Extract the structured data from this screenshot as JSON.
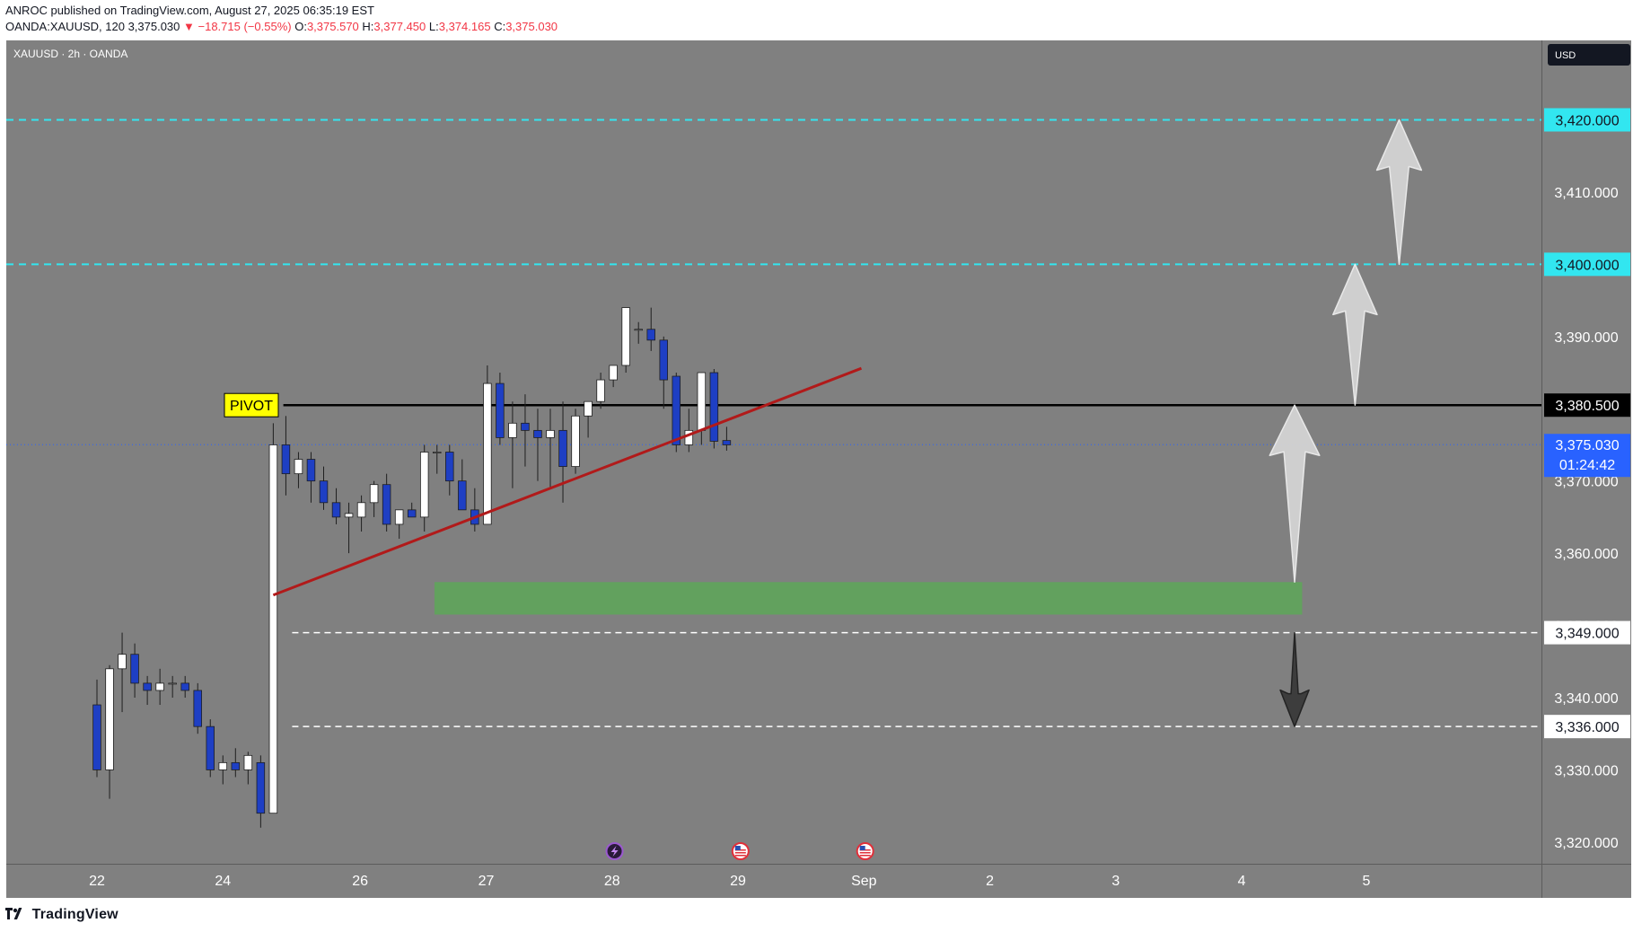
{
  "header": {
    "publisher_line": "ANROC published on TradingView.com, August 27, 2025 06:35:19 EST",
    "symbol_line": "OANDA:XAUUSD, 120",
    "last": "3,375.030",
    "change": "▼ −18.715 (−0.55%)",
    "o_label": "O:",
    "o_value": "3,375.570",
    "h_label": "H:",
    "h_value": "3,377.450",
    "l_label": "L:",
    "l_value": "3,374.165",
    "c_label": "C:",
    "c_value": "3,375.030"
  },
  "footer": {
    "brand": "TradingView",
    "logo_mark": "17"
  },
  "colors": {
    "background": "#808080",
    "up_candle": "#ffffff",
    "down_candle": "#1e3fc4",
    "wick": "#1f1f1f",
    "trendline": "#b11a1a",
    "zone": "#5ea45a",
    "cyan_level": "#32e6f0",
    "current_price": "#2962ff",
    "pivot_label": "#ffff00"
  },
  "chart_data": {
    "type": "candlestick",
    "pane_title": "XAUUSD · 2h · OANDA",
    "currency": "USD",
    "ylim": [
      3317,
      3431
    ],
    "xlim": [
      -7.2,
      114.7
    ],
    "y_ticks": [
      "3,320.000",
      "3,330.000",
      "3,340.000",
      "3,350.000",
      "3,360.000",
      "3,370.000",
      "3,390.000",
      "3,410.000"
    ],
    "y_tick_values": [
      3320,
      3330,
      3340,
      3350,
      3360,
      3370,
      3390,
      3410
    ],
    "x_ticks": [
      {
        "label": "22",
        "i": 0
      },
      {
        "label": "24",
        "i": 10
      },
      {
        "label": "26",
        "i": 20.9
      },
      {
        "label": "27",
        "i": 30.9
      },
      {
        "label": "28",
        "i": 40.9
      },
      {
        "label": "29",
        "i": 50.9
      },
      {
        "label": "Sep",
        "i": 60.9
      },
      {
        "label": "2",
        "i": 70.9
      },
      {
        "label": "3",
        "i": 80.9
      },
      {
        "label": "4",
        "i": 90.9
      },
      {
        "label": "5",
        "i": 100.8
      }
    ],
    "candles": [
      [
        3339.0,
        3342.5,
        3329.0,
        3330.0
      ],
      [
        3330.0,
        3344.5,
        3326.0,
        3344.0
      ],
      [
        3344.0,
        3349.0,
        3338.0,
        3346.0
      ],
      [
        3346.0,
        3347.5,
        3340.0,
        3342.0
      ],
      [
        3342.0,
        3343.0,
        3339.0,
        3341.0
      ],
      [
        3341.0,
        3344.0,
        3339.0,
        3342.0
      ],
      [
        3342.0,
        3343.0,
        3340.0,
        3342.0
      ],
      [
        3342.0,
        3343.0,
        3340.0,
        3341.0
      ],
      [
        3341.0,
        3342.0,
        3335.0,
        3336.0
      ],
      [
        3336.0,
        3337.0,
        3329.0,
        3330.0
      ],
      [
        3330.0,
        3332.0,
        3328.0,
        3331.0
      ],
      [
        3331.0,
        3333.0,
        3329.0,
        3330.0
      ],
      [
        3330.0,
        3332.5,
        3328.0,
        3332.0
      ],
      [
        3331.0,
        3332.0,
        3322.0,
        3324.0
      ],
      [
        3324.0,
        3378.0,
        3324.0,
        3375.0
      ],
      [
        3375.0,
        3379.0,
        3368.0,
        3371.0
      ],
      [
        3371.0,
        3374.0,
        3369.0,
        3373.0
      ],
      [
        3373.0,
        3374.0,
        3367.0,
        3370.0
      ],
      [
        3370.0,
        3372.0,
        3366.0,
        3367.0
      ],
      [
        3367.0,
        3369.0,
        3364.0,
        3365.0
      ],
      [
        3365.0,
        3367.0,
        3360.0,
        3365.5
      ],
      [
        3365.0,
        3368.0,
        3363.0,
        3367.0
      ],
      [
        3367.0,
        3370.0,
        3365.0,
        3369.5
      ],
      [
        3369.5,
        3371.0,
        3363.0,
        3364.0
      ],
      [
        3364.0,
        3366.0,
        3362.0,
        3366.0
      ],
      [
        3366.0,
        3367.0,
        3365.0,
        3365.0
      ],
      [
        3365.0,
        3375.0,
        3363.0,
        3374.0
      ],
      [
        3374.0,
        3375.0,
        3371.0,
        3374.0
      ],
      [
        3374.0,
        3375.0,
        3368.0,
        3370.0
      ],
      [
        3370.0,
        3373.0,
        3367.0,
        3366.0
      ],
      [
        3366.0,
        3369.0,
        3363.0,
        3364.0
      ],
      [
        3364.0,
        3386.0,
        3364.0,
        3383.5
      ],
      [
        3383.5,
        3385.0,
        3375.0,
        3376.0
      ],
      [
        3376.0,
        3381.0,
        3369.0,
        3378.0
      ],
      [
        3378.0,
        3382.0,
        3372.0,
        3377.0
      ],
      [
        3377.0,
        3380.0,
        3370.0,
        3376.0
      ],
      [
        3376.0,
        3380.0,
        3369.0,
        3377.0
      ],
      [
        3377.0,
        3381.0,
        3367.0,
        3372.0
      ],
      [
        3372.0,
        3380.0,
        3371.0,
        3379.0
      ],
      [
        3379.0,
        3381.0,
        3376.0,
        3381.0
      ],
      [
        3381.0,
        3385.0,
        3380.0,
        3384.0
      ],
      [
        3384.0,
        3386.0,
        3383.0,
        3386.0
      ],
      [
        3386.0,
        3394.0,
        3385.0,
        3394.0
      ],
      [
        3391.0,
        3392.0,
        3389.0,
        3391.0
      ],
      [
        3391.0,
        3394.0,
        3388.0,
        3389.5
      ],
      [
        3389.5,
        3390.0,
        3380.0,
        3384.0
      ],
      [
        3384.5,
        3385.0,
        3374.0,
        3375.0
      ],
      [
        3375.0,
        3380.0,
        3374.0,
        3377.0
      ],
      [
        3377.0,
        3385.0,
        3375.0,
        3385.0
      ],
      [
        3385.0,
        3385.5,
        3374.5,
        3375.5
      ],
      [
        3375.6,
        3377.5,
        3374.2,
        3375.0
      ]
    ],
    "trendline": {
      "from": {
        "i": 14.0,
        "y": 3354.2
      },
      "to": {
        "i": 60.7,
        "y": 3385.6
      }
    },
    "levels": [
      {
        "price": 3420.0,
        "style": "dashed-cyan",
        "from_i": -7.2,
        "label": "3,420.000"
      },
      {
        "price": 3400.0,
        "style": "dashed-cyan",
        "from_i": -7.2,
        "label": "3,400.000"
      },
      {
        "price": 3380.5,
        "style": "solid-black",
        "from_i": 14.8,
        "label": "3,380.500"
      },
      {
        "price": 3349.0,
        "style": "dashed-white",
        "from_i": 15.5,
        "label": "3,349.000"
      },
      {
        "price": 3336.0,
        "style": "dashed-white",
        "from_i": 15.5,
        "label": "3,336.000"
      }
    ],
    "current_price": {
      "value": 3375.03,
      "label": "3,375.030",
      "countdown": "01:24:42"
    },
    "pivot": {
      "text": "PIVOT",
      "price": 3380.5
    },
    "zone": {
      "i_from": 26.8,
      "i_to": 95.7,
      "y_low": 3351.5,
      "y_high": 3356.0
    },
    "arrows": [
      {
        "direction": "up",
        "i": 95.1,
        "y_from": 3356.0,
        "y_to": 3380.5,
        "tone": "light"
      },
      {
        "direction": "up",
        "i": 99.9,
        "y_from": 3380.5,
        "y_to": 3400.0,
        "tone": "light"
      },
      {
        "direction": "up",
        "i": 103.4,
        "y_from": 3400.0,
        "y_to": 3420.0,
        "tone": "light"
      },
      {
        "direction": "down",
        "i": 95.1,
        "y_from": 3349.0,
        "y_to": 3336.0,
        "tone": "dark"
      }
    ],
    "events": [
      {
        "i": 41.1,
        "icon": "lightning-icon"
      },
      {
        "i": 51.1,
        "icon": "us-flag-icon"
      },
      {
        "i": 61.0,
        "icon": "us-flag-icon"
      }
    ]
  }
}
